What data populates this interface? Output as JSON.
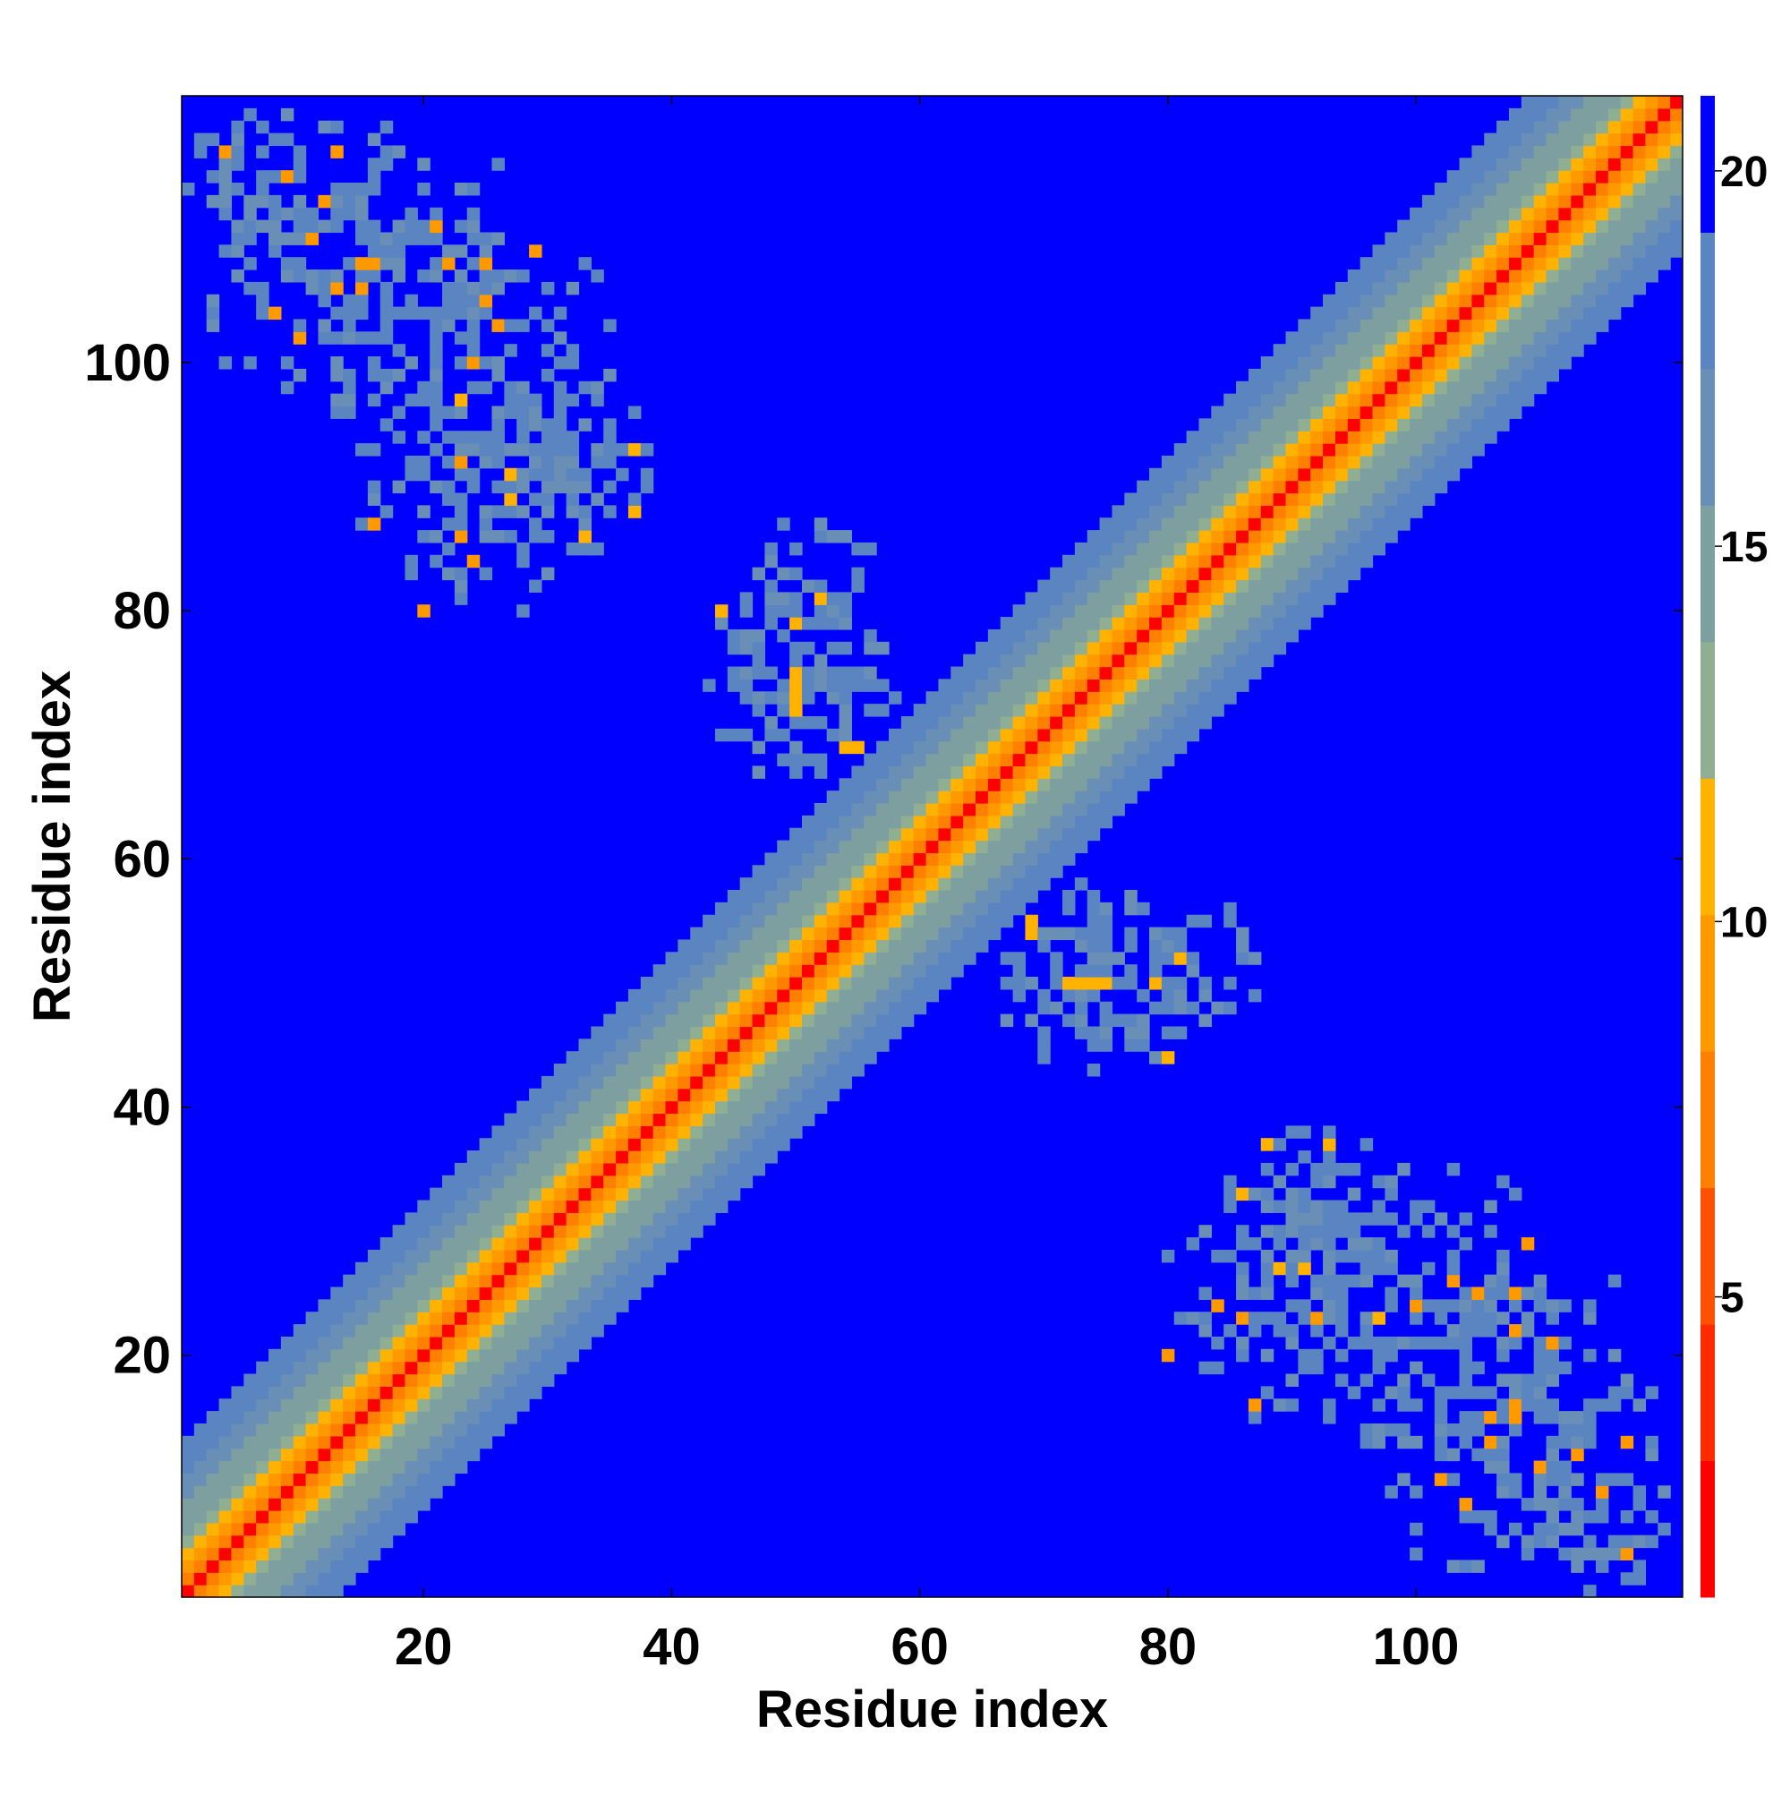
{
  "chart_data": {
    "type": "heatmap",
    "xlabel": "Residue index",
    "ylabel": "Residue index",
    "n_residues": 121,
    "xlim": [
      0.5,
      121.5
    ],
    "ylim": [
      0.5,
      121.5
    ],
    "x_ticks": [
      20,
      40,
      60,
      80,
      100
    ],
    "y_ticks": [
      20,
      40,
      60,
      80,
      100
    ],
    "colorbar": {
      "range": [
        1,
        21
      ],
      "ticks": [
        5,
        10,
        15,
        20
      ],
      "colors": [
        "#ff0000",
        "#ff2a00",
        "#ff4f00",
        "#ff7f00",
        "#ff9900",
        "#ffb300",
        "#8fae92",
        "#7e9fa0",
        "#6a8fb6",
        "#5b85c0",
        "#0000ff"
      ]
    },
    "diagonal_band": {
      "description_values": "distance as function of |i-j|",
      "distance_by_offset": [
        1,
        3.8,
        5.6,
        7.2,
        9.0,
        10.5,
        11.5,
        12.5,
        13.5,
        14.5,
        16.0,
        17.5,
        19.5
      ]
    },
    "contact_regions": [
      {
        "x_range": [
          1,
          28
        ],
        "y_range": [
          96,
          121
        ],
        "min_value": 6
      },
      {
        "x_range": [
          20,
          38
        ],
        "y_range": [
          84,
          100
        ],
        "min_value": 7
      },
      {
        "x_range": [
          43,
          58
        ],
        "y_range": [
          66,
          82
        ],
        "min_value": 7
      },
      {
        "x_range": [
          66,
          88
        ],
        "y_range": [
          43,
          58
        ],
        "min_value": 7
      },
      {
        "x_range": [
          79,
          112
        ],
        "y_range": [
          12,
          37
        ],
        "min_value": 6
      },
      {
        "x_range": [
          108,
          121
        ],
        "y_range": [
          1,
          12
        ],
        "min_value": 6
      }
    ]
  }
}
